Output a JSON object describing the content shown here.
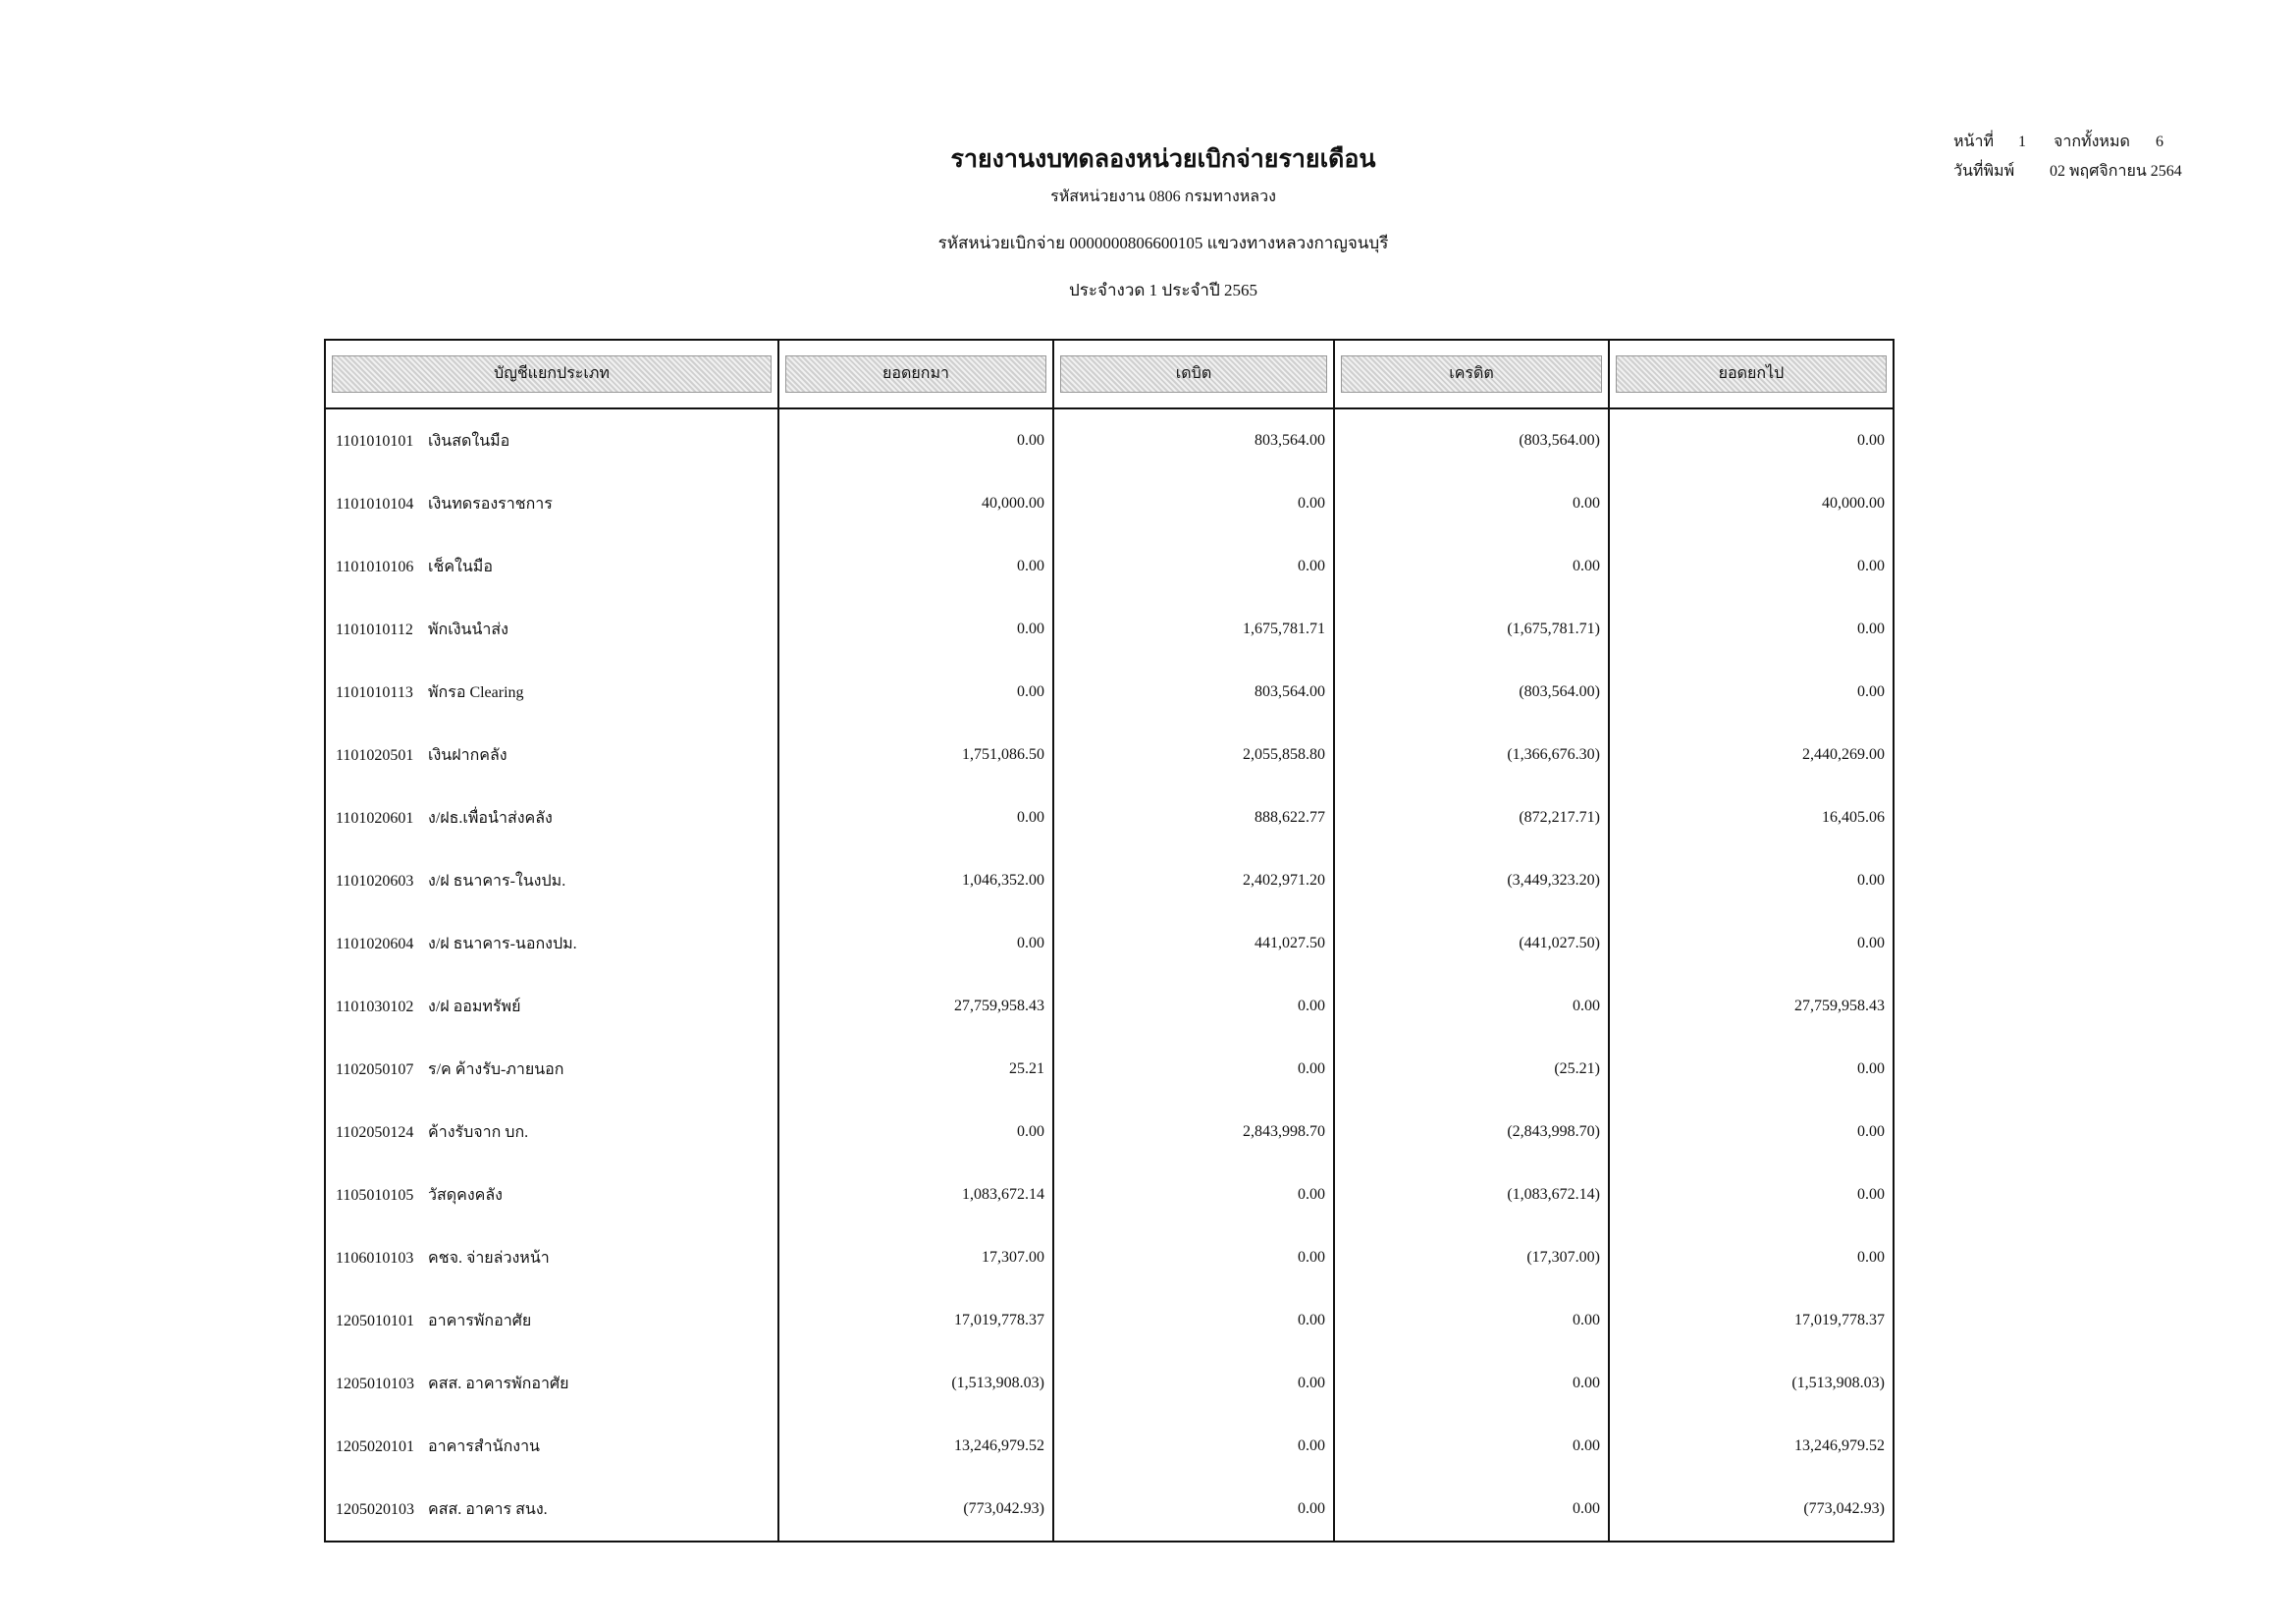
{
  "header": {
    "title": "รายงานงบทดลองหน่วยเบิกจ่ายรายเดือน",
    "agency": "รหัสหน่วยงาน 0806 กรมทางหลวง",
    "disbursing_unit": "รหัสหน่วยเบิกจ่าย 0000000806600105 แขวงทางหลวงกาญจนบุรี",
    "period": "ประจำงวด 1 ประจำปี 2565"
  },
  "page_info": {
    "page_label": "หน้าที่",
    "page": "1",
    "total_label": "จากทั้งหมด",
    "total": "6",
    "print_date_label": "วันที่พิมพ์",
    "print_date": "02 พฤศจิกายน 2564"
  },
  "table": {
    "columns": [
      "บัญชีแยกประเภท",
      "ยอดยกมา",
      "เดบิต",
      "เครดิต",
      "ยอดยกไป"
    ],
    "rows": [
      {
        "code": "1101010101",
        "name": "เงินสดในมือ",
        "opening": "0.00",
        "debit": "803,564.00",
        "credit": "(803,564.00)",
        "closing": "0.00"
      },
      {
        "code": "1101010104",
        "name": "เงินทดรองราชการ",
        "opening": "40,000.00",
        "debit": "0.00",
        "credit": "0.00",
        "closing": "40,000.00"
      },
      {
        "code": "1101010106",
        "name": "เช็คในมือ",
        "opening": "0.00",
        "debit": "0.00",
        "credit": "0.00",
        "closing": "0.00"
      },
      {
        "code": "1101010112",
        "name": "พักเงินนำส่ง",
        "opening": "0.00",
        "debit": "1,675,781.71",
        "credit": "(1,675,781.71)",
        "closing": "0.00"
      },
      {
        "code": "1101010113",
        "name": "พักรอ Clearing",
        "opening": "0.00",
        "debit": "803,564.00",
        "credit": "(803,564.00)",
        "closing": "0.00"
      },
      {
        "code": "1101020501",
        "name": "เงินฝากคลัง",
        "opening": "1,751,086.50",
        "debit": "2,055,858.80",
        "credit": "(1,366,676.30)",
        "closing": "2,440,269.00"
      },
      {
        "code": "1101020601",
        "name": "ง/ฝธ.เพื่อนำส่งคลัง",
        "opening": "0.00",
        "debit": "888,622.77",
        "credit": "(872,217.71)",
        "closing": "16,405.06"
      },
      {
        "code": "1101020603",
        "name": "ง/ฝ ธนาคาร-ในงปม.",
        "opening": "1,046,352.00",
        "debit": "2,402,971.20",
        "credit": "(3,449,323.20)",
        "closing": "0.00"
      },
      {
        "code": "1101020604",
        "name": "ง/ฝ ธนาคาร-นอกงปม.",
        "opening": "0.00",
        "debit": "441,027.50",
        "credit": "(441,027.50)",
        "closing": "0.00"
      },
      {
        "code": "1101030102",
        "name": "ง/ฝ ออมทรัพย์",
        "opening": "27,759,958.43",
        "debit": "0.00",
        "credit": "0.00",
        "closing": "27,759,958.43"
      },
      {
        "code": "1102050107",
        "name": "ร/ค ค้างรับ-ภายนอก",
        "opening": "25.21",
        "debit": "0.00",
        "credit": "(25.21)",
        "closing": "0.00"
      },
      {
        "code": "1102050124",
        "name": "ค้างรับจาก บก.",
        "opening": "0.00",
        "debit": "2,843,998.70",
        "credit": "(2,843,998.70)",
        "closing": "0.00"
      },
      {
        "code": "1105010105",
        "name": "วัสดุคงคลัง",
        "opening": "1,083,672.14",
        "debit": "0.00",
        "credit": "(1,083,672.14)",
        "closing": "0.00"
      },
      {
        "code": "1106010103",
        "name": "คชจ. จ่ายล่วงหน้า",
        "opening": "17,307.00",
        "debit": "0.00",
        "credit": "(17,307.00)",
        "closing": "0.00"
      },
      {
        "code": "1205010101",
        "name": "อาคารพักอาศัย",
        "opening": "17,019,778.37",
        "debit": "0.00",
        "credit": "0.00",
        "closing": "17,019,778.37"
      },
      {
        "code": "1205010103",
        "name": "คสส. อาคารพักอาศัย",
        "opening": "(1,513,908.03)",
        "debit": "0.00",
        "credit": "0.00",
        "closing": "(1,513,908.03)"
      },
      {
        "code": "1205020101",
        "name": "อาคารสำนักงาน",
        "opening": "13,246,979.52",
        "debit": "0.00",
        "credit": "0.00",
        "closing": "13,246,979.52"
      },
      {
        "code": "1205020103",
        "name": "คสส. อาคาร สนง.",
        "opening": "(773,042.93)",
        "debit": "0.00",
        "credit": "0.00",
        "closing": "(773,042.93)"
      }
    ]
  }
}
